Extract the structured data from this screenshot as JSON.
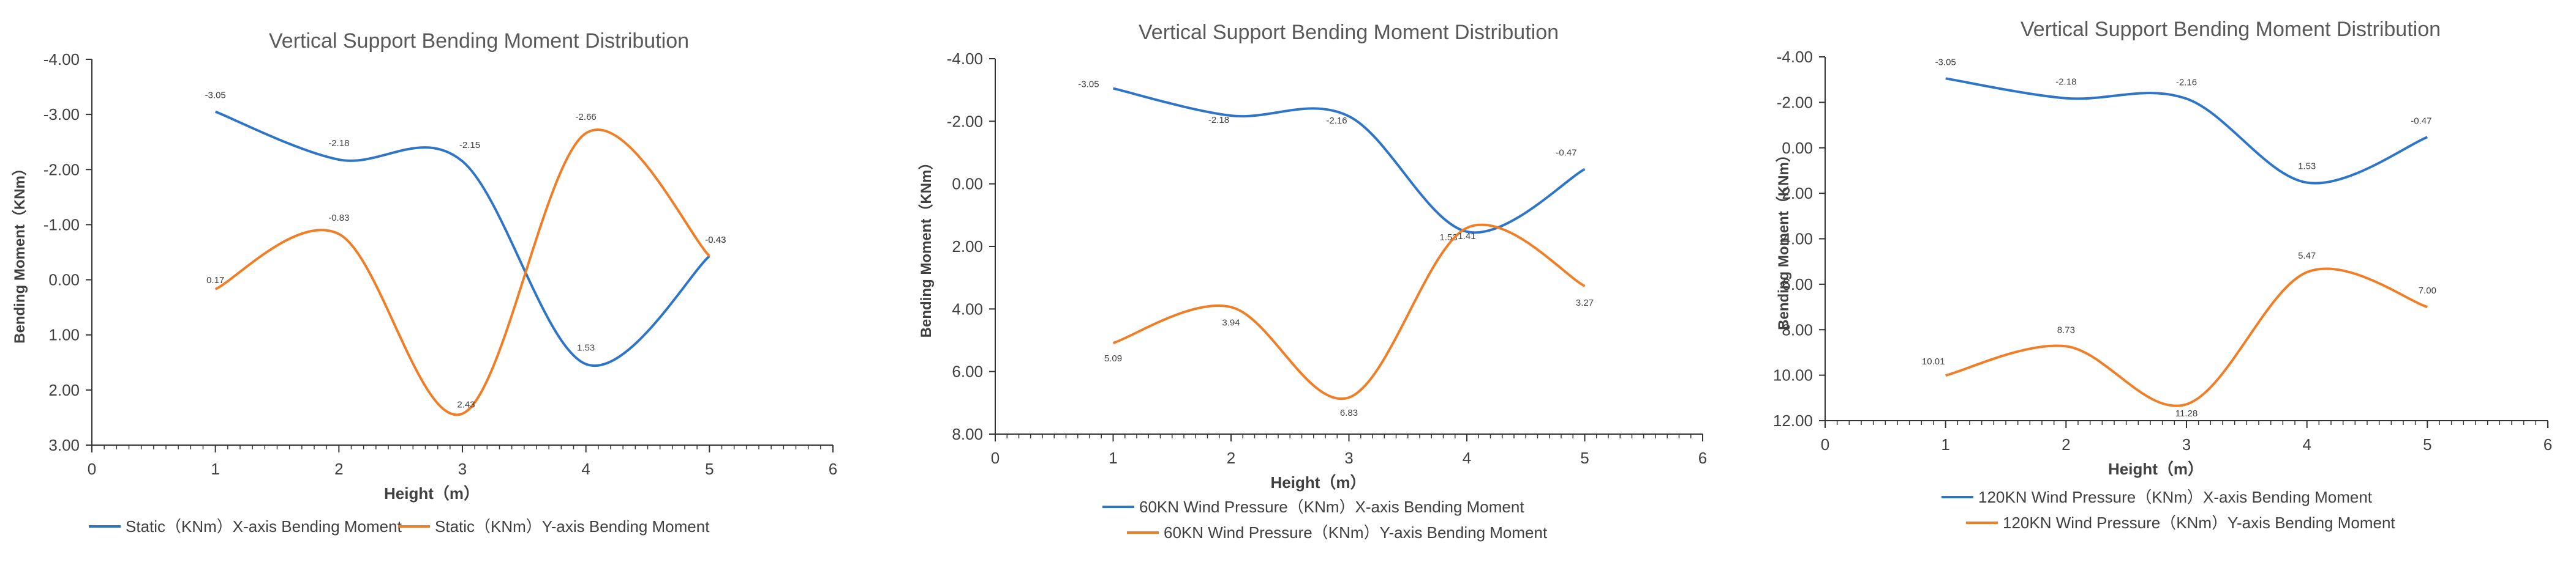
{
  "chart_data": [
    {
      "type": "line",
      "title": "Vertical Support Bending Moment Distribution",
      "xlabel": "Height（m）",
      "ylabel": "Bending Moment（KNm）",
      "xlim": [
        0,
        6
      ],
      "ylim": [
        -4,
        3
      ],
      "y_reversed": true,
      "x_ticks": [
        0,
        1,
        2,
        3,
        4,
        5,
        6
      ],
      "y_ticks": [
        -4,
        -3,
        -2,
        -1,
        0,
        1,
        2,
        3
      ],
      "legend_position": "bottom",
      "series": [
        {
          "name": "Static（KNm）X-axis Bending Moment",
          "color": "#2E75C8",
          "x": [
            1,
            2,
            3,
            4,
            5
          ],
          "values": [
            -3.05,
            -2.18,
            -2.15,
            1.53,
            -0.43
          ],
          "labels": [
            "-3.05",
            "-2.18",
            "-2.15",
            "1.53",
            "-0.43"
          ]
        },
        {
          "name": "Static（KNm）Y-axis Bending Moment",
          "color": "#F07E26",
          "x": [
            1,
            2,
            3,
            4,
            5
          ],
          "values": [
            0.17,
            -0.83,
            2.43,
            -2.66,
            -0.43
          ],
          "labels": [
            "0.17",
            "-0.83",
            "2.43",
            "-2.66",
            "-0.43"
          ]
        }
      ]
    },
    {
      "type": "line",
      "title": "Vertical Support Bending Moment Distribution",
      "xlabel": "Height（m）",
      "ylabel": "Bending Moment（KNm）",
      "xlim": [
        0,
        6
      ],
      "ylim": [
        -4,
        8
      ],
      "y_reversed": true,
      "x_ticks": [
        0,
        1,
        2,
        3,
        4,
        5,
        6
      ],
      "y_ticks": [
        -4,
        -2,
        0,
        2,
        4,
        6,
        8
      ],
      "legend_position": "bottom",
      "series": [
        {
          "name": "60KN Wind Pressure（KNm）X-axis Bending Moment",
          "color": "#2E75C8",
          "x": [
            1,
            2,
            3,
            4,
            5
          ],
          "values": [
            -3.05,
            -2.18,
            -2.16,
            1.53,
            -0.47
          ],
          "labels": [
            "-3.05",
            "-2.18",
            "-2.16",
            "1.53",
            "-0.47"
          ]
        },
        {
          "name": "60KN Wind Pressure（KNm）Y-axis Bending Moment",
          "color": "#F07E26",
          "x": [
            1,
            2,
            3,
            4,
            5
          ],
          "values": [
            5.09,
            3.94,
            6.83,
            1.41,
            3.27
          ],
          "labels": [
            "5.09",
            "3.94",
            "6.83",
            "1.41",
            "3.27"
          ]
        }
      ]
    },
    {
      "type": "line",
      "title": "Vertical Support Bending Moment Distribution",
      "xlabel": "Height（m）",
      "ylabel": "Bending Moment（KNm）",
      "xlim": [
        0,
        6
      ],
      "ylim": [
        -4,
        12
      ],
      "y_reversed": true,
      "x_ticks": [
        0,
        1,
        2,
        3,
        4,
        5,
        6
      ],
      "y_ticks": [
        -4,
        -2,
        0,
        2,
        4,
        6,
        8,
        10,
        12
      ],
      "legend_position": "bottom",
      "series": [
        {
          "name": "120KN Wind Pressure（KNm）X-axis Bending Moment",
          "color": "#2E75C8",
          "x": [
            1,
            2,
            3,
            4,
            5
          ],
          "values": [
            -3.05,
            -2.18,
            -2.16,
            1.53,
            -0.47
          ],
          "labels": [
            "-3.05",
            "-2.18",
            "-2.16",
            "1.53",
            "-0.47"
          ]
        },
        {
          "name": "120KN Wind Pressure（KNm）Y-axis Bending Moment",
          "color": "#F07E26",
          "x": [
            1,
            2,
            3,
            4,
            5
          ],
          "values": [
            10.01,
            8.73,
            11.28,
            5.47,
            7.0
          ],
          "labels": [
            "10.01",
            "8.73",
            "11.28",
            "5.47",
            "7.00"
          ]
        }
      ]
    }
  ]
}
